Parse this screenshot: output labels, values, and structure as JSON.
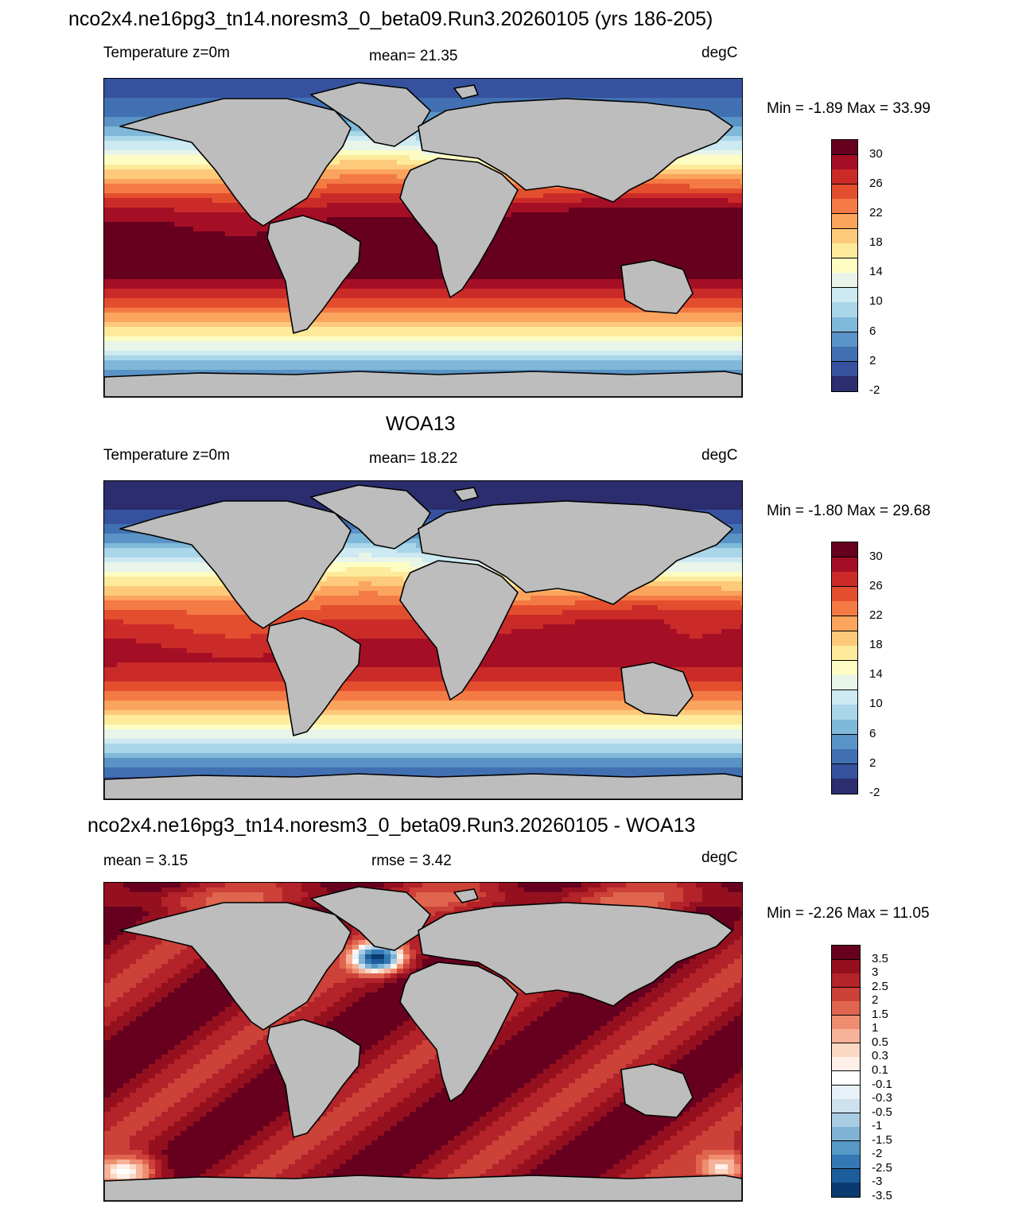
{
  "figure_title": "nco2x4.ne16pg3_tn14.noresm3_0_beta09.Run3.20260105 (yrs 186-205)",
  "panels": [
    {
      "id": "model",
      "header": "",
      "left_label": "Temperature z=0m",
      "center_label": "mean=  21.35",
      "right_label": "degC",
      "minmax": "Min =  -1.89 Max =  33.99",
      "palette": "temperature",
      "colorbar_labels": [
        "30",
        "26",
        "22",
        "18",
        "14",
        "10",
        "6",
        "2",
        "-2"
      ]
    },
    {
      "id": "obs",
      "header": "WOA13",
      "left_label": "Temperature z=0m",
      "center_label": "mean=  18.22",
      "right_label": "degC",
      "minmax": "Min =  -1.80 Max =  29.68",
      "palette": "temperature",
      "colorbar_labels": [
        "30",
        "26",
        "22",
        "18",
        "14",
        "10",
        "6",
        "2",
        "-2"
      ]
    },
    {
      "id": "diff",
      "header": "nco2x4.ne16pg3_tn14.noresm3_0_beta09.Run3.20260105 - WOA13",
      "left_label": "mean =   3.15",
      "center_label": "rmse =   3.42",
      "right_label": "degC",
      "minmax": "Min =  -2.26 Max =  11.05",
      "palette": "difference",
      "colorbar_labels": [
        "3.5",
        "3",
        "2.5",
        "2",
        "1.5",
        "1",
        "0.5",
        "0.3",
        "0.1",
        "-0.1",
        "-0.3",
        "-0.5",
        "-1",
        "-1.5",
        "-2",
        "-2.5",
        "-3",
        "-3.5"
      ]
    }
  ],
  "colors": {
    "land": "#bdbdbd",
    "temperature": [
      "#67001f",
      "#a50f26",
      "#cb2b28",
      "#e34e2e",
      "#f47a45",
      "#fba45d",
      "#fdc97b",
      "#feea9b",
      "#fdfdc3",
      "#e8f5e8",
      "#cde9f2",
      "#a9d6e8",
      "#7fb8d8",
      "#5a93c6",
      "#4271b3",
      "#36529e",
      "#2b2d6e"
    ],
    "difference": [
      "#67001f",
      "#95101f",
      "#b4222a",
      "#cc4138",
      "#e0654f",
      "#ef8d71",
      "#f6b39a",
      "#fbd8c4",
      "#fff1ea",
      "#ffffff",
      "#e8f1f7",
      "#cde1ee",
      "#a8cde3",
      "#7fb3d5",
      "#5698c6",
      "#3479b5",
      "#1d5d9b",
      "#0a3a70"
    ]
  }
}
